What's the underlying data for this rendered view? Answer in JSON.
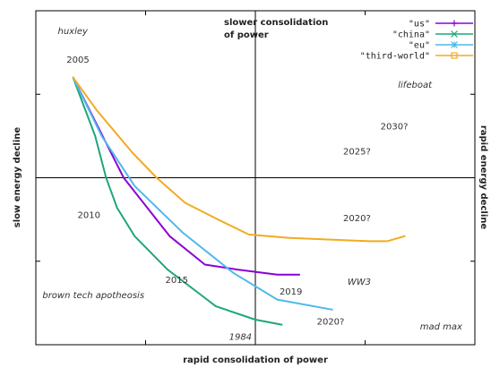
{
  "chart_data": {
    "type": "line",
    "title": "",
    "xlabel": "rapid consolidation of power",
    "x2label": "slower consolidation of power",
    "ylabel": "slow energy decline",
    "y2label": "rapid energy decline",
    "xlim": [
      -10,
      10
    ],
    "ylim": [
      -10,
      10
    ],
    "grid": false,
    "legend": "top-right",
    "series": [
      {
        "name": "\"us\"",
        "color": "#8b00d6",
        "marker": "plus",
        "x": [
          -8.3,
          -6.0,
          -3.9,
          -2.3,
          -0.8,
          1.0,
          2.0
        ],
        "y": [
          6.0,
          0.0,
          -3.5,
          -5.2,
          -5.5,
          -5.8,
          -5.8
        ]
      },
      {
        "name": "\"china\"",
        "color": "#1fa67c",
        "marker": "cross",
        "x": [
          -8.3,
          -7.3,
          -6.8,
          -6.3,
          -5.5,
          -4.0,
          -2.5,
          -1.8,
          0.0,
          1.2
        ],
        "y": [
          6.0,
          2.5,
          0.0,
          -1.8,
          -3.5,
          -5.5,
          -7.0,
          -7.7,
          -8.5,
          -8.8
        ]
      },
      {
        "name": "\"eu\"",
        "color": "#4fb9ea",
        "marker": "star",
        "x": [
          -8.3,
          -7.0,
          -5.5,
          -3.3,
          -1.0,
          1.0,
          3.5
        ],
        "y": [
          6.0,
          2.5,
          -0.5,
          -3.3,
          -5.7,
          -7.3,
          -7.9
        ]
      },
      {
        "name": "\"third-world\"",
        "color": "#f2ab21",
        "marker": "square",
        "x": [
          -8.3,
          -7.2,
          -5.6,
          -4.5,
          -3.2,
          -1.7,
          -0.3,
          1.5,
          3.3,
          5.2,
          6.0,
          6.8
        ],
        "y": [
          6.0,
          4.0,
          1.5,
          0.0,
          -1.5,
          -2.5,
          -3.4,
          -3.6,
          -3.7,
          -3.8,
          -3.8,
          -3.5
        ]
      }
    ],
    "annotations": [
      {
        "text": "huxley",
        "x": -9.0,
        "y": 8.6,
        "italic": true
      },
      {
        "text": "2005",
        "x": -8.6,
        "y": 6.9
      },
      {
        "text": "lifeboat",
        "x": 6.5,
        "y": 5.4,
        "italic": true
      },
      {
        "text": "2030?",
        "x": 5.7,
        "y": 2.9
      },
      {
        "text": "2025?",
        "x": 4.0,
        "y": 1.4
      },
      {
        "text": "2010",
        "x": -8.1,
        "y": -2.4
      },
      {
        "text": "2020?",
        "x": 4.0,
        "y": -2.6
      },
      {
        "text": "2015",
        "x": -4.1,
        "y": -6.3
      },
      {
        "text": "WW3",
        "x": 4.2,
        "y": -6.4,
        "italic": true
      },
      {
        "text": "brown tech apotheosis",
        "x": -9.7,
        "y": -7.2,
        "italic": true
      },
      {
        "text": "2019",
        "x": 1.1,
        "y": -7.0
      },
      {
        "text": "2020?",
        "x": 2.8,
        "y": -8.8
      },
      {
        "text": "mad max",
        "x": 7.5,
        "y": -9.1,
        "italic": true
      },
      {
        "text": "1984",
        "x": -1.2,
        "y": -9.7,
        "italic": true
      }
    ]
  }
}
